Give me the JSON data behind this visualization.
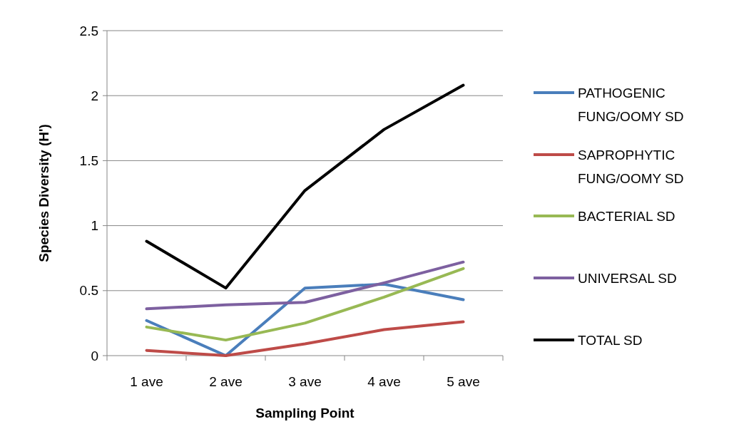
{
  "chart_data": {
    "type": "line",
    "xlabel": "Sampling Point",
    "ylabel": "Species Diversity (H')",
    "categories": [
      "1 ave",
      "2 ave",
      "3 ave",
      "4 ave",
      "5 ave"
    ],
    "ylim": [
      0,
      2.5
    ],
    "yticks": [
      0,
      0.5,
      1,
      1.5,
      2,
      2.5
    ],
    "grid": "y",
    "legend": "right",
    "marker": "none",
    "line_style": "solid",
    "series": [
      {
        "name": "PATHOGENIC FUNG/OOMY SD",
        "color": "#4a7ebb",
        "values": [
          0.27,
          0,
          0.52,
          0.55,
          0.43
        ]
      },
      {
        "name": "SAPROPHYTIC FUNG/OOMY SD",
        "color": "#be4b48",
        "values": [
          0.04,
          0,
          0.09,
          0.2,
          0.26
        ]
      },
      {
        "name": "BACTERIAL SD",
        "color": "#98b954",
        "values": [
          0.22,
          0.12,
          0.25,
          0.45,
          0.67
        ]
      },
      {
        "name": "UNIVERSAL SD",
        "color": "#7d60a0",
        "values": [
          0.36,
          0.39,
          0.41,
          0.56,
          0.72
        ]
      },
      {
        "name": "TOTAL SD",
        "color": "#000000",
        "values": [
          0.88,
          0.52,
          1.27,
          1.74,
          2.08
        ]
      }
    ]
  }
}
